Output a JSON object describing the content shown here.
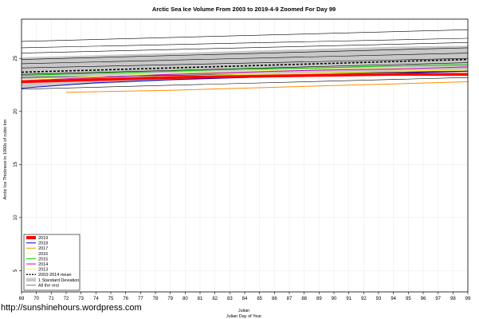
{
  "chart_data": {
    "type": "line",
    "title": "Arctic Sea Ice Volume From 2003 to 2019-4-9 Zoomed For Day 99",
    "xlabel": "Julian",
    "xlabel2": "Julian Day of Year",
    "ylabel": "Arctic Ice Thickness in 1000s of cubic km",
    "xlim": [
      69,
      99
    ],
    "ylim": [
      3,
      28.7
    ],
    "x_ticks": [
      69,
      70,
      71,
      72,
      73,
      74,
      75,
      76,
      77,
      78,
      79,
      80,
      81,
      82,
      83,
      84,
      85,
      86,
      87,
      88,
      89,
      90,
      91,
      92,
      93,
      94,
      95,
      96,
      97,
      98,
      99
    ],
    "y_ticks": [
      5,
      10,
      15,
      20,
      25
    ],
    "grid": true,
    "legend_position": "bottom-left",
    "band": {
      "name": "1 Standard Deviation",
      "color": "#c8c8c8",
      "x": [
        69,
        74,
        79,
        84,
        89,
        94,
        99
      ],
      "upper": [
        25.1,
        25.3,
        25.5,
        25.7,
        25.9,
        26.1,
        26.2
      ],
      "lower": [
        22.3,
        22.6,
        22.9,
        23.2,
        23.4,
        23.6,
        23.7
      ]
    },
    "series": [
      {
        "name": "2019",
        "color": "#ff0000",
        "width": 3.5,
        "dash": "",
        "x": [
          69,
          74,
          79,
          84,
          89,
          94,
          99
        ],
        "values": [
          22.8,
          23.0,
          23.2,
          23.3,
          23.4,
          23.5,
          23.5
        ]
      },
      {
        "name": "2018",
        "color": "#0000cc",
        "width": 1,
        "dash": "",
        "x": [
          69,
          74,
          79,
          84,
          89,
          94,
          99
        ],
        "values": [
          22.2,
          22.7,
          23.0,
          23.2,
          23.4,
          23.6,
          23.8
        ]
      },
      {
        "name": "2017",
        "color": "#ff8c00",
        "width": 1,
        "dash": "",
        "x": [
          72,
          79,
          84,
          89,
          94,
          99
        ],
        "values": [
          21.8,
          22.0,
          22.2,
          22.4,
          22.6,
          22.8
        ]
      },
      {
        "name": "2016",
        "color": "#ffff66",
        "width": 1,
        "dash": "",
        "x": [
          69,
          74,
          79,
          84,
          89,
          94,
          99
        ],
        "values": [
          23.0,
          23.3,
          23.6,
          23.8,
          24.0,
          24.1,
          24.2
        ]
      },
      {
        "name": "2015",
        "color": "#00cc00",
        "width": 1,
        "dash": "",
        "x": [
          69,
          74,
          79,
          84,
          89,
          94,
          99
        ],
        "values": [
          23.4,
          23.6,
          23.8,
          24.0,
          24.1,
          24.3,
          24.4
        ]
      },
      {
        "name": "2014",
        "color": "#cc00cc",
        "width": 1,
        "dash": "",
        "x": [
          69,
          74,
          79,
          84,
          89,
          94,
          99
        ],
        "values": [
          22.9,
          23.2,
          23.5,
          23.7,
          23.9,
          24.0,
          24.2
        ]
      },
      {
        "name": "2013",
        "color": "#ffff00",
        "width": 1,
        "dash": "",
        "x": [
          69,
          74,
          79,
          84,
          89,
          94,
          99
        ],
        "values": [
          22.9,
          23.1,
          23.3,
          23.5,
          23.6,
          23.8,
          23.9
        ]
      },
      {
        "name": "2003-2014 mean",
        "color": "#000000",
        "width": 1.6,
        "dash": "3,2",
        "x": [
          69,
          74,
          79,
          84,
          89,
          94,
          99
        ],
        "values": [
          23.7,
          23.9,
          24.1,
          24.3,
          24.5,
          24.7,
          24.9
        ]
      }
    ],
    "other_series": {
      "name": "All the rest",
      "color": "#000000",
      "width": 0.6,
      "lines": [
        {
          "x": [
            69,
            99
          ],
          "values": [
            26.6,
            27.7
          ]
        },
        {
          "x": [
            69,
            99
          ],
          "values": [
            26.0,
            26.9
          ]
        },
        {
          "x": [
            69,
            99
          ],
          "values": [
            25.5,
            26.5
          ]
        },
        {
          "x": [
            69,
            99
          ],
          "values": [
            24.9,
            26.0
          ]
        },
        {
          "x": [
            69,
            99
          ],
          "values": [
            24.5,
            25.5
          ]
        },
        {
          "x": [
            69,
            99
          ],
          "values": [
            24.1,
            25.0
          ]
        },
        {
          "x": [
            69,
            99
          ],
          "values": [
            23.5,
            24.6
          ]
        },
        {
          "x": [
            69,
            99
          ],
          "values": [
            23.2,
            23.8
          ]
        },
        {
          "x": [
            69,
            99
          ],
          "values": [
            22.1,
            23.2
          ]
        }
      ]
    },
    "legend": [
      {
        "label": "2019",
        "color": "#ff0000",
        "kind": "thick"
      },
      {
        "label": "2018",
        "color": "#0000cc",
        "kind": "line"
      },
      {
        "label": "2017",
        "color": "#ff8c00",
        "kind": "line"
      },
      {
        "label": "2016",
        "color": "#ffff66",
        "kind": "line"
      },
      {
        "label": "2015",
        "color": "#00cc00",
        "kind": "line"
      },
      {
        "label": "2014",
        "color": "#cc00cc",
        "kind": "line"
      },
      {
        "label": "2013",
        "color": "#ffff00",
        "kind": "line"
      },
      {
        "label": "2003-2014 mean",
        "color": "#000000",
        "kind": "dash"
      },
      {
        "label": "1 Standard Deviation",
        "color": "#c8c8c8",
        "kind": "band"
      },
      {
        "label": "All the rest",
        "color": "#000000",
        "kind": "thin"
      }
    ]
  },
  "watermark": "http://sunshinehours.wordpress.com"
}
